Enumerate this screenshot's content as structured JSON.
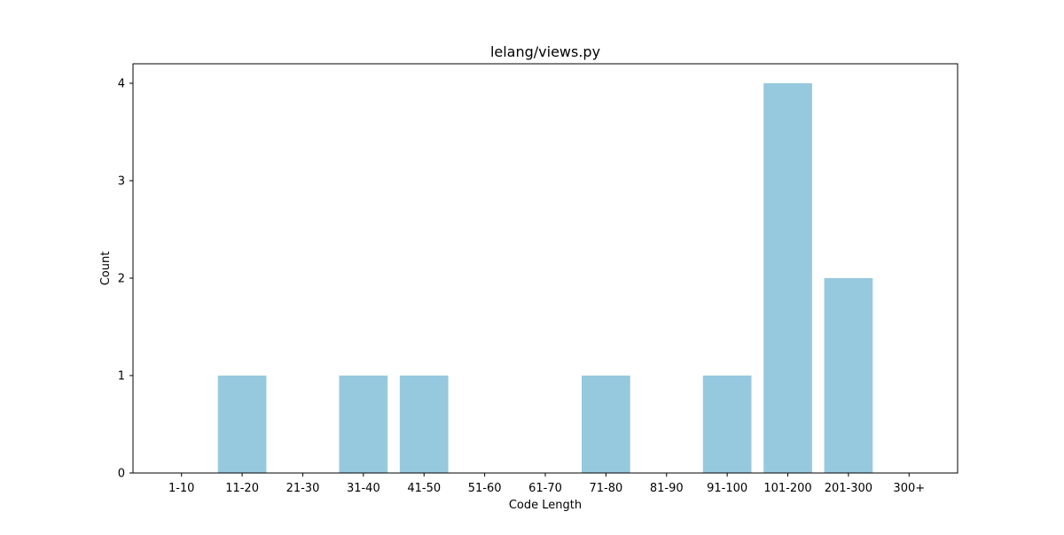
{
  "chart_data": {
    "type": "bar",
    "title": "lelang/views.py",
    "xlabel": "Code Length",
    "ylabel": "Count",
    "categories": [
      "1-10",
      "11-20",
      "21-30",
      "31-40",
      "41-50",
      "51-60",
      "61-70",
      "71-80",
      "81-90",
      "91-100",
      "101-200",
      "201-300",
      "300+"
    ],
    "values": [
      0,
      1,
      0,
      1,
      1,
      0,
      0,
      1,
      0,
      1,
      4,
      2,
      0
    ],
    "ylim": [
      0,
      4.2
    ],
    "yticks": [
      0,
      1,
      2,
      3,
      4
    ],
    "bar_color": "#96c9dd",
    "grid": false,
    "legend": "none"
  }
}
